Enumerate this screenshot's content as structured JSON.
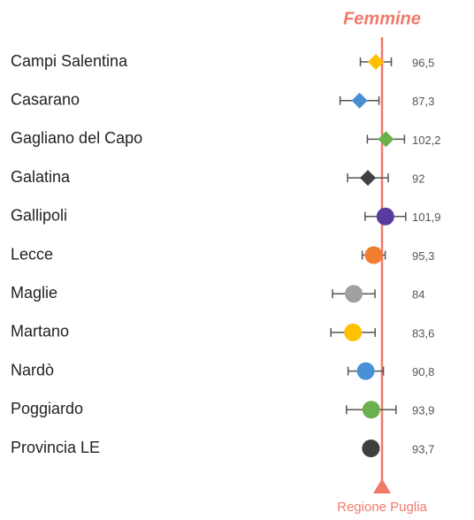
{
  "chart_data": {
    "type": "dot",
    "title": "Femmine",
    "title_color": "#f07a6a",
    "categories": [
      "Campi Salentina",
      "Casarano",
      "Gagliano del Capo",
      "Galatina",
      "Gallipoli",
      "Lecce",
      "Maglie",
      "Martano",
      "Nardò",
      "Poggiardo",
      "Provincia LE"
    ],
    "values": [
      96.5,
      87.3,
      102.2,
      92,
      101.9,
      95.3,
      84,
      83.6,
      90.8,
      93.9,
      93.7
    ],
    "value_labels": [
      "96,5",
      "87,3",
      "102,2",
      "92",
      "101,9",
      "95,3",
      "84",
      "83,6",
      "90,8",
      "93,9",
      "93,7"
    ],
    "errors": [
      8.75,
      11,
      10.5,
      11.5,
      11.5,
      6.5,
      12,
      12.5,
      10,
      14,
      null
    ],
    "markers": [
      "diamond",
      "diamond",
      "diamond",
      "diamond",
      "circle",
      "circle",
      "circle",
      "circle",
      "circle",
      "circle",
      "circle"
    ],
    "colors": [
      "#ffc000",
      "#4a8fd4",
      "#6ab04c",
      "#404040",
      "#5b3a9e",
      "#f07d30",
      "#a0a0a0",
      "#ffc000",
      "#4a90d9",
      "#6ab04c",
      "#3f3f3f"
    ],
    "xlim": [
      64,
      134
    ],
    "reference": {
      "value": 100,
      "label": "Regione Puglia",
      "color": "#f07a6a"
    }
  }
}
